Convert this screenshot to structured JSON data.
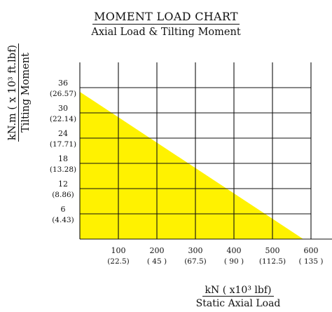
{
  "header": {
    "title": "MOMENT LOAD CHART",
    "subtitle": "Axial Load & Tilting Moment"
  },
  "y_axis": {
    "unit_label": "kN.m ( x 10³  ft.lbf)",
    "name": "Tilting Moment"
  },
  "x_axis": {
    "unit_label": "kN ( x10³ lbf)",
    "name": "Static Axial Load"
  },
  "chart_data": {
    "type": "area",
    "title": "MOMENT LOAD CHART",
    "subtitle": "Axial Load & Tilting Moment",
    "xlabel": "Static Axial Load",
    "x_unit": "kN ( x10³ lbf)",
    "ylabel": "Tilting Moment",
    "y_unit": "kN.m ( x 10³  ft.lbf)",
    "xlim": [
      0,
      600
    ],
    "ylim": [
      0,
      42
    ],
    "grid": true,
    "x_ticks": [
      {
        "value": 100,
        "label": "100",
        "sublabel": "(22.5)"
      },
      {
        "value": 200,
        "label": "200",
        "sublabel": "( 45 )"
      },
      {
        "value": 300,
        "label": "300",
        "sublabel": "(67.5)"
      },
      {
        "value": 400,
        "label": "400",
        "sublabel": "( 90 )"
      },
      {
        "value": 500,
        "label": "500",
        "sublabel": "(112.5)"
      },
      {
        "value": 600,
        "label": "600",
        "sublabel": "( 135 )"
      }
    ],
    "y_ticks": [
      {
        "value": 6,
        "label": "6",
        "sublabel": "(4.43)"
      },
      {
        "value": 12,
        "label": "12",
        "sublabel": "(8.86)"
      },
      {
        "value": 18,
        "label": "18",
        "sublabel": "(13.28)"
      },
      {
        "value": 24,
        "label": "24",
        "sublabel": "(17.71)"
      },
      {
        "value": 30,
        "label": "30",
        "sublabel": "(22.14)"
      },
      {
        "value": 36,
        "label": "36",
        "sublabel": "(26.57)"
      }
    ],
    "series": [
      {
        "x": [
          0,
          580
        ],
        "y": [
          35,
          0
        ],
        "color": "#fff200"
      }
    ]
  }
}
